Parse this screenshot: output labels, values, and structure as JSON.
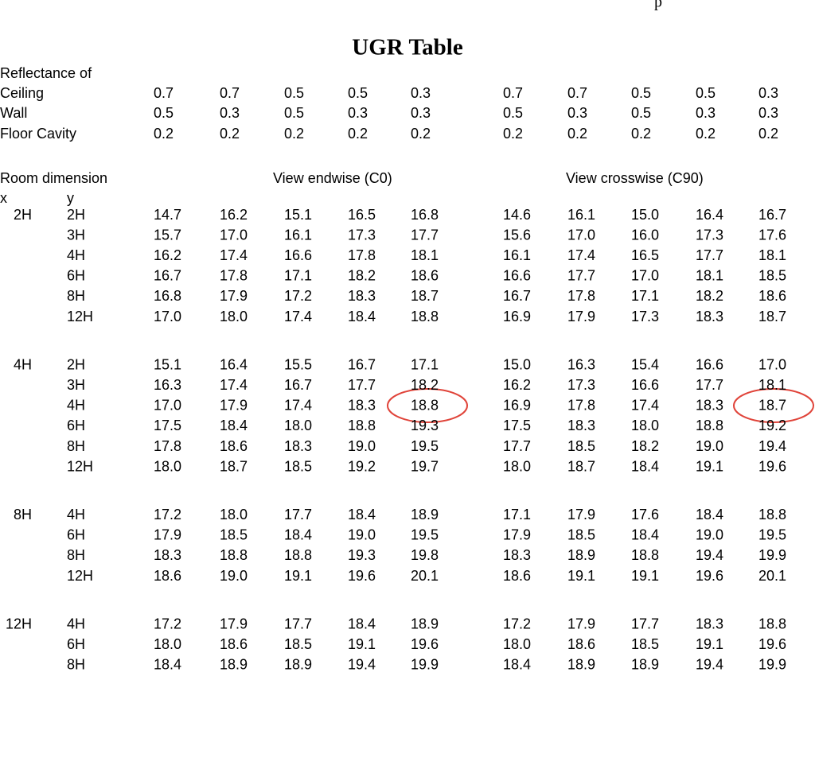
{
  "header_fragment": "p",
  "title": "UGR Table",
  "reflectance": {
    "label": "Reflectance of",
    "rows": [
      {
        "label": "Ceiling",
        "values": [
          "0.7",
          "0.7",
          "0.5",
          "0.5",
          "0.3",
          "0.7",
          "0.7",
          "0.5",
          "0.5",
          "0.3"
        ]
      },
      {
        "label": "Wall",
        "values": [
          "0.5",
          "0.3",
          "0.5",
          "0.3",
          "0.3",
          "0.5",
          "0.3",
          "0.5",
          "0.3",
          "0.3"
        ]
      },
      {
        "label": "Floor Cavity",
        "values": [
          "0.2",
          "0.2",
          "0.2",
          "0.2",
          "0.2",
          "0.2",
          "0.2",
          "0.2",
          "0.2",
          "0.2"
        ]
      }
    ]
  },
  "room_dimension": "Room dimension",
  "view_endwise": "View endwise (C0)",
  "view_crosswise": "View crosswise (C90)",
  "x_label": "x",
  "y_label": "y",
  "groups": [
    {
      "x": "2H",
      "rows": [
        {
          "y": "2H",
          "values": [
            "14.7",
            "16.2",
            "15.1",
            "16.5",
            "16.8",
            "14.6",
            "16.1",
            "15.0",
            "16.4",
            "16.7"
          ]
        },
        {
          "y": "3H",
          "values": [
            "15.7",
            "17.0",
            "16.1",
            "17.3",
            "17.7",
            "15.6",
            "17.0",
            "16.0",
            "17.3",
            "17.6"
          ]
        },
        {
          "y": "4H",
          "values": [
            "16.2",
            "17.4",
            "16.6",
            "17.8",
            "18.1",
            "16.1",
            "17.4",
            "16.5",
            "17.7",
            "18.1"
          ]
        },
        {
          "y": "6H",
          "values": [
            "16.7",
            "17.8",
            "17.1",
            "18.2",
            "18.6",
            "16.6",
            "17.7",
            "17.0",
            "18.1",
            "18.5"
          ]
        },
        {
          "y": "8H",
          "values": [
            "16.8",
            "17.9",
            "17.2",
            "18.3",
            "18.7",
            "16.7",
            "17.8",
            "17.1",
            "18.2",
            "18.6"
          ]
        },
        {
          "y": "12H",
          "values": [
            "17.0",
            "18.0",
            "17.4",
            "18.4",
            "18.8",
            "16.9",
            "17.9",
            "17.3",
            "18.3",
            "18.7"
          ]
        }
      ]
    },
    {
      "x": "4H",
      "rows": [
        {
          "y": "2H",
          "values": [
            "15.1",
            "16.4",
            "15.5",
            "16.7",
            "17.1",
            "15.0",
            "16.3",
            "15.4",
            "16.6",
            "17.0"
          ]
        },
        {
          "y": "3H",
          "values": [
            "16.3",
            "17.4",
            "16.7",
            "17.7",
            "18.2",
            "16.2",
            "17.3",
            "16.6",
            "17.7",
            "18.1"
          ]
        },
        {
          "y": "4H",
          "values": [
            "17.0",
            "17.9",
            "17.4",
            "18.3",
            "18.8",
            "16.9",
            "17.8",
            "17.4",
            "18.3",
            "18.7"
          ]
        },
        {
          "y": "6H",
          "values": [
            "17.5",
            "18.4",
            "18.0",
            "18.8",
            "19.3",
            "17.5",
            "18.3",
            "18.0",
            "18.8",
            "19.2"
          ]
        },
        {
          "y": "8H",
          "values": [
            "17.8",
            "18.6",
            "18.3",
            "19.0",
            "19.5",
            "17.7",
            "18.5",
            "18.2",
            "19.0",
            "19.4"
          ]
        },
        {
          "y": "12H",
          "values": [
            "18.0",
            "18.7",
            "18.5",
            "19.2",
            "19.7",
            "18.0",
            "18.7",
            "18.4",
            "19.1",
            "19.6"
          ]
        }
      ]
    },
    {
      "x": "8H",
      "rows": [
        {
          "y": "4H",
          "values": [
            "17.2",
            "18.0",
            "17.7",
            "18.4",
            "18.9",
            "17.1",
            "17.9",
            "17.6",
            "18.4",
            "18.8"
          ]
        },
        {
          "y": "6H",
          "values": [
            "17.9",
            "18.5",
            "18.4",
            "19.0",
            "19.5",
            "17.9",
            "18.5",
            "18.4",
            "19.0",
            "19.5"
          ]
        },
        {
          "y": "8H",
          "values": [
            "18.3",
            "18.8",
            "18.8",
            "19.3",
            "19.8",
            "18.3",
            "18.9",
            "18.8",
            "19.4",
            "19.9"
          ]
        },
        {
          "y": "12H",
          "values": [
            "18.6",
            "19.0",
            "19.1",
            "19.6",
            "20.1",
            "18.6",
            "19.1",
            "19.1",
            "19.6",
            "20.1"
          ]
        }
      ]
    },
    {
      "x": "12H",
      "rows": [
        {
          "y": "4H",
          "values": [
            "17.2",
            "17.9",
            "17.7",
            "18.4",
            "18.9",
            "17.2",
            "17.9",
            "17.7",
            "18.3",
            "18.8"
          ]
        },
        {
          "y": "6H",
          "values": [
            "18.0",
            "18.6",
            "18.5",
            "19.1",
            "19.6",
            "18.0",
            "18.6",
            "18.5",
            "19.1",
            "19.6"
          ]
        },
        {
          "y": "8H",
          "values": [
            "18.4",
            "18.9",
            "18.9",
            "19.4",
            "19.9",
            "18.4",
            "18.9",
            "18.9",
            "19.4",
            "19.9"
          ]
        }
      ]
    }
  ]
}
